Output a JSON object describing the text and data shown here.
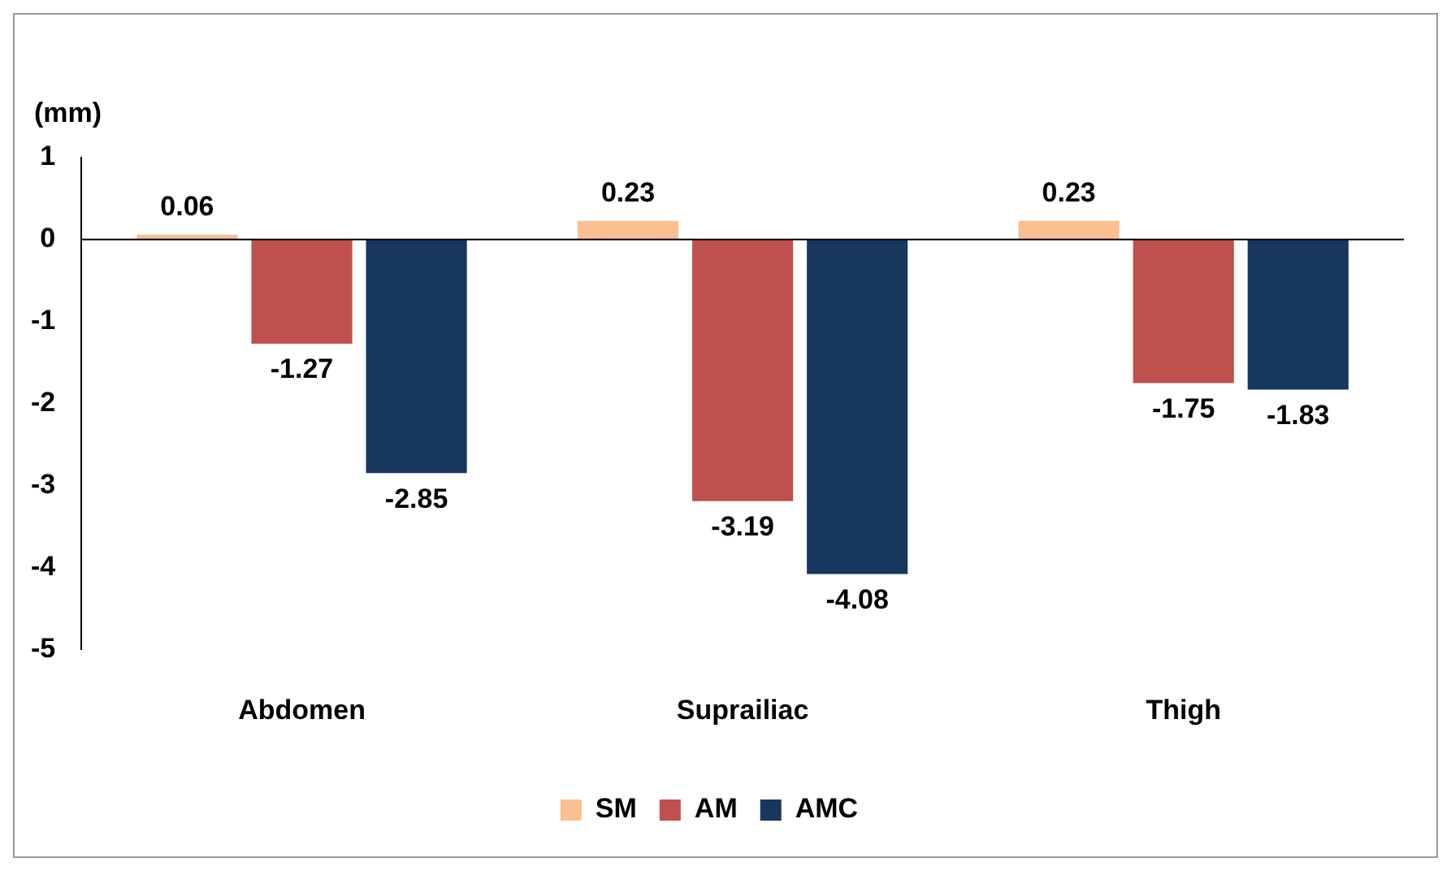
{
  "chart_data": {
    "type": "bar",
    "ylabel": "(mm)",
    "categories": [
      "Abdomen",
      "Suprailiac",
      "Thigh"
    ],
    "series": [
      {
        "name": "SM",
        "color": "#fac090",
        "values": [
          0.06,
          0.23,
          0.23
        ]
      },
      {
        "name": "AM",
        "color": "#c0504d",
        "values": [
          -1.27,
          -3.19,
          -1.75
        ]
      },
      {
        "name": "AMC",
        "color": "#17375e",
        "values": [
          -2.85,
          -4.08,
          -1.83
        ]
      }
    ],
    "ylim": [
      -5,
      1
    ],
    "yticks": [
      -5,
      -4,
      -3,
      -2,
      -1,
      0,
      1
    ],
    "data_labels": true,
    "legend": "bottom"
  }
}
